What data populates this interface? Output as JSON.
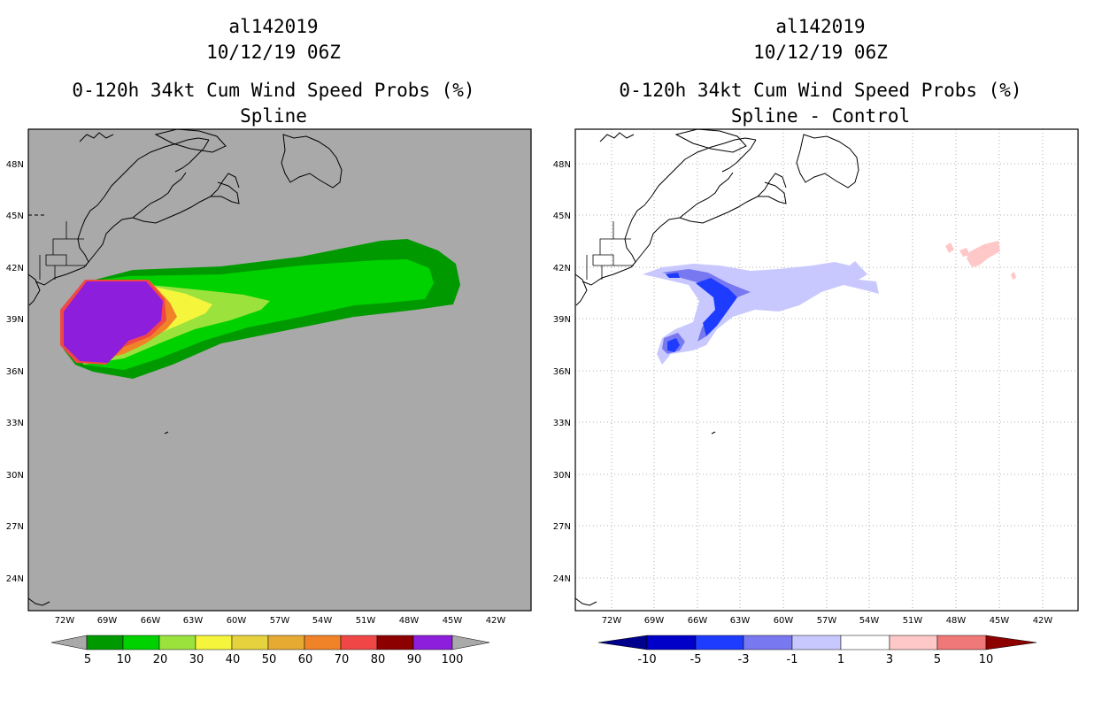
{
  "panels": [
    {
      "id": "spline",
      "storm_id": "al142019",
      "datetime": "10/12/19 06Z",
      "product": "0-120h 34kt Cum Wind Speed Probs (%)",
      "subtitle": "Spline",
      "background": "#a9a9a9",
      "lon_labels": [
        "72W",
        "69W",
        "66W",
        "63W",
        "60W",
        "57W",
        "54W",
        "51W",
        "48W",
        "45W",
        "42W"
      ],
      "lat_labels": [
        "48N",
        "45N",
        "42N",
        "39N",
        "36N",
        "33N",
        "30N",
        "27N",
        "24N"
      ],
      "colorbar": {
        "labels": [
          "5",
          "10",
          "20",
          "30",
          "40",
          "50",
          "60",
          "70",
          "80",
          "90",
          "100"
        ],
        "colors": [
          "#009a00",
          "#00d200",
          "#9be23c",
          "#f5f53c",
          "#e6d23c",
          "#e6aa32",
          "#f08228",
          "#f04646",
          "#8c0000",
          "#8c1edc"
        ],
        "end_color": "#a9a9a9"
      }
    },
    {
      "id": "diff",
      "storm_id": "al142019",
      "datetime": "10/12/19 06Z",
      "product": "0-120h 34kt Cum Wind Speed Probs (%)",
      "subtitle": "Spline - Control",
      "background": "#ffffff",
      "lon_labels": [
        "72W",
        "69W",
        "66W",
        "63W",
        "60W",
        "57W",
        "54W",
        "51W",
        "48W",
        "45W",
        "42W"
      ],
      "lat_labels": [
        "48N",
        "45N",
        "42N",
        "39N",
        "36N",
        "33N",
        "30N",
        "27N",
        "24N"
      ],
      "colorbar": {
        "labels": [
          "-10",
          "-5",
          "-3",
          "-1",
          "1",
          "3",
          "5",
          "10"
        ],
        "colors": [
          "#0000c8",
          "#1e3cff",
          "#7878f0",
          "#c8c8ff",
          "#ffffff",
          "#ffc8c8",
          "#f07878",
          "#ff0000",
          "#8c0000"
        ],
        "start_color": "#00008c",
        "end_color": "#8c0000"
      }
    }
  ]
}
